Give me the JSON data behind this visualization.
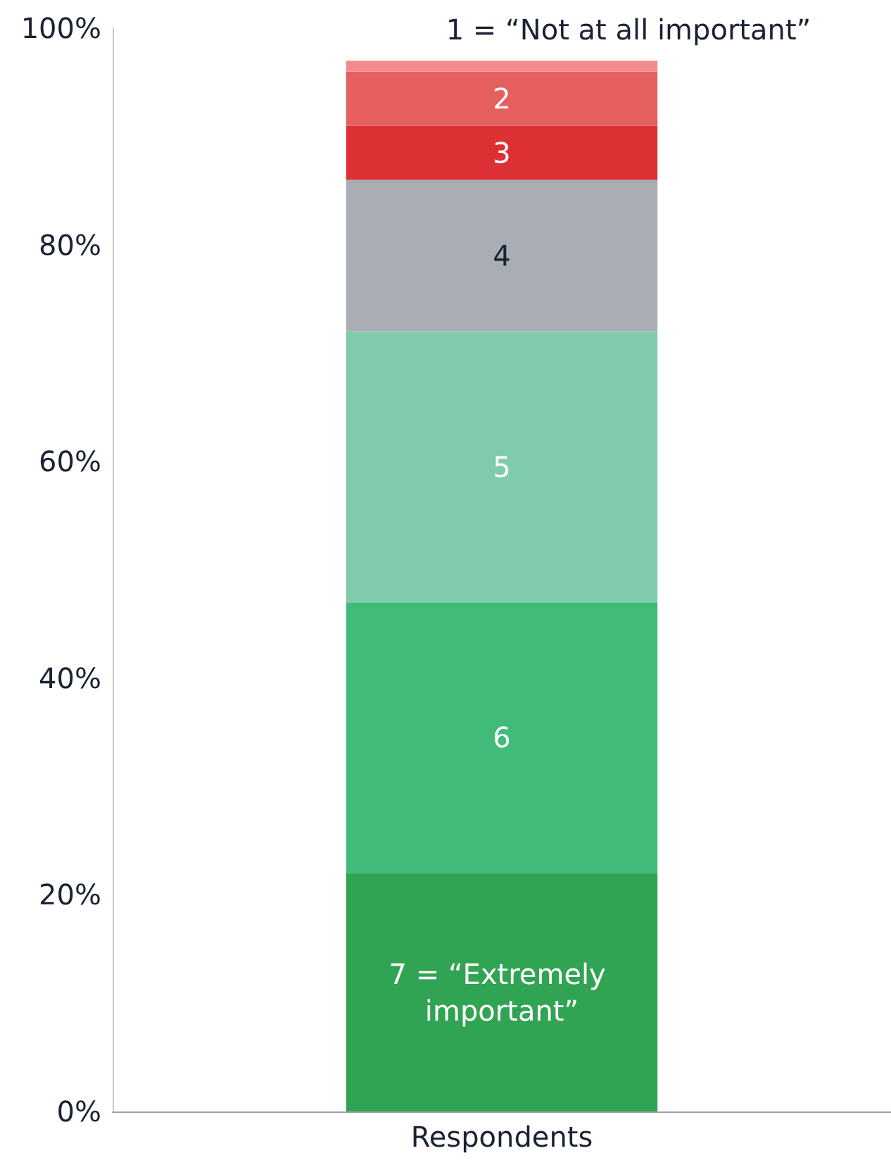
{
  "chart_data": {
    "type": "bar",
    "stacked": true,
    "categories": [
      "Respondents"
    ],
    "ylim": [
      0,
      100
    ],
    "yticks": [
      {
        "value": 0,
        "label": "0%"
      },
      {
        "value": 20,
        "label": "20%"
      },
      {
        "value": 40,
        "label": "40%"
      },
      {
        "value": 60,
        "label": "60%"
      },
      {
        "value": 80,
        "label": "80%"
      },
      {
        "value": 100,
        "label": "100%"
      }
    ],
    "grid": false,
    "series": [
      {
        "name": "7 = “Extremely important”",
        "color": "#31a453",
        "values": [
          22
        ]
      },
      {
        "name": "6",
        "color": "#40bb7a",
        "values": [
          25
        ]
      },
      {
        "name": "5",
        "color": "#80cbab",
        "values": [
          25
        ]
      },
      {
        "name": "4",
        "color": "#a8aeb4",
        "values": [
          14
        ]
      },
      {
        "name": "3",
        "color": "#dd3035",
        "values": [
          5
        ]
      },
      {
        "name": "2",
        "color": "#e55f5f",
        "values": [
          5
        ]
      },
      {
        "name": "1 = “Not at all important”",
        "color": "#f28b8b",
        "values": [
          1
        ]
      }
    ]
  }
}
